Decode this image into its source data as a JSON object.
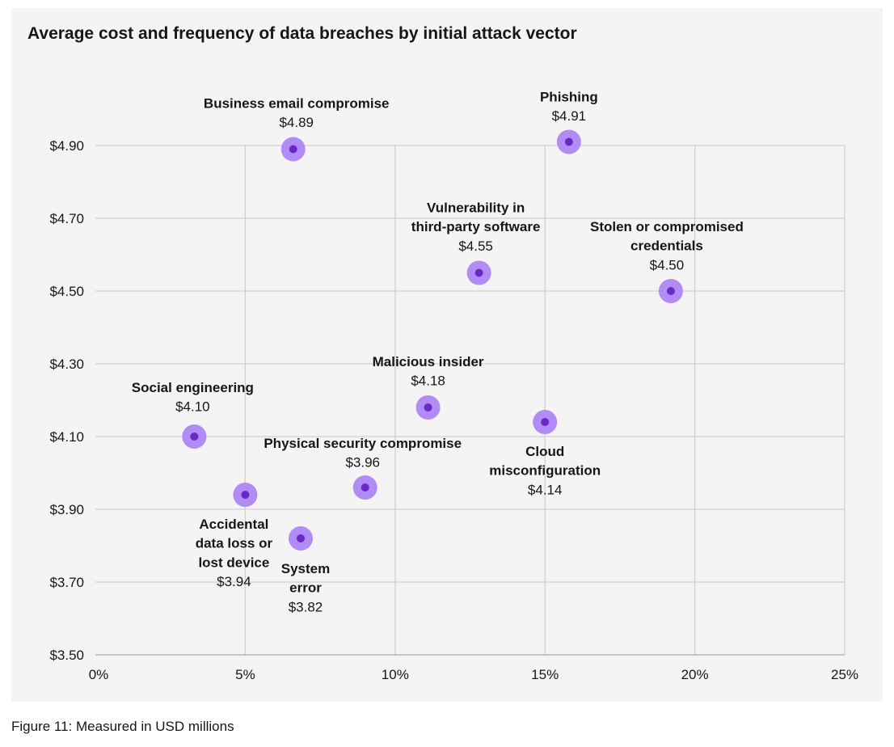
{
  "chart_data": {
    "type": "scatter",
    "title": "Average cost and frequency of data breaches by initial attack vector",
    "xlabel": "",
    "ylabel": "",
    "xlim": [
      0,
      25
    ],
    "ylim": [
      3.5,
      4.9
    ],
    "x_ticks": [
      "0%",
      "5%",
      "10%",
      "15%",
      "20%",
      "25%"
    ],
    "y_ticks": [
      "$3.50",
      "$3.70",
      "$3.90",
      "$4.10",
      "$4.30",
      "$4.50",
      "$4.70",
      "$4.90"
    ],
    "grid": true,
    "colors": {
      "outer": "#b28cf6",
      "inner": "#6929c4",
      "background": "#f4f4f4",
      "grid": "#d0d0d0"
    },
    "points": [
      {
        "name_lines": [
          "Business email compromise"
        ],
        "value_label": "$4.89",
        "x": 6.6,
        "y": 4.89
      },
      {
        "name_lines": [
          "Phishing"
        ],
        "value_label": "$4.91",
        "x": 15.8,
        "y": 4.91
      },
      {
        "name_lines": [
          "Vulnerability in",
          "third-party software"
        ],
        "value_label": "$4.55",
        "x": 12.8,
        "y": 4.55
      },
      {
        "name_lines": [
          "Stolen or compromised",
          "credentials"
        ],
        "value_label": "$4.50",
        "x": 19.2,
        "y": 4.5
      },
      {
        "name_lines": [
          "Malicious insider"
        ],
        "value_label": "$4.18",
        "x": 11.1,
        "y": 4.18
      },
      {
        "name_lines": [
          "Social engineering"
        ],
        "value_label": "$4.10",
        "x": 3.3,
        "y": 4.1
      },
      {
        "name_lines": [
          "Cloud",
          "misconfiguration"
        ],
        "value_label": "$4.14",
        "x": 15.0,
        "y": 4.14
      },
      {
        "name_lines": [
          "Physical security compromise"
        ],
        "value_label": "$3.96",
        "x": 9.0,
        "y": 3.96
      },
      {
        "name_lines": [
          "Accidental",
          "data loss or",
          "lost device"
        ],
        "value_label": "$3.94",
        "x": 5.0,
        "y": 3.94
      },
      {
        "name_lines": [
          "System",
          "error"
        ],
        "value_label": "$3.82",
        "x": 6.85,
        "y": 3.82
      }
    ]
  },
  "caption": "Figure 11: Measured in USD millions"
}
